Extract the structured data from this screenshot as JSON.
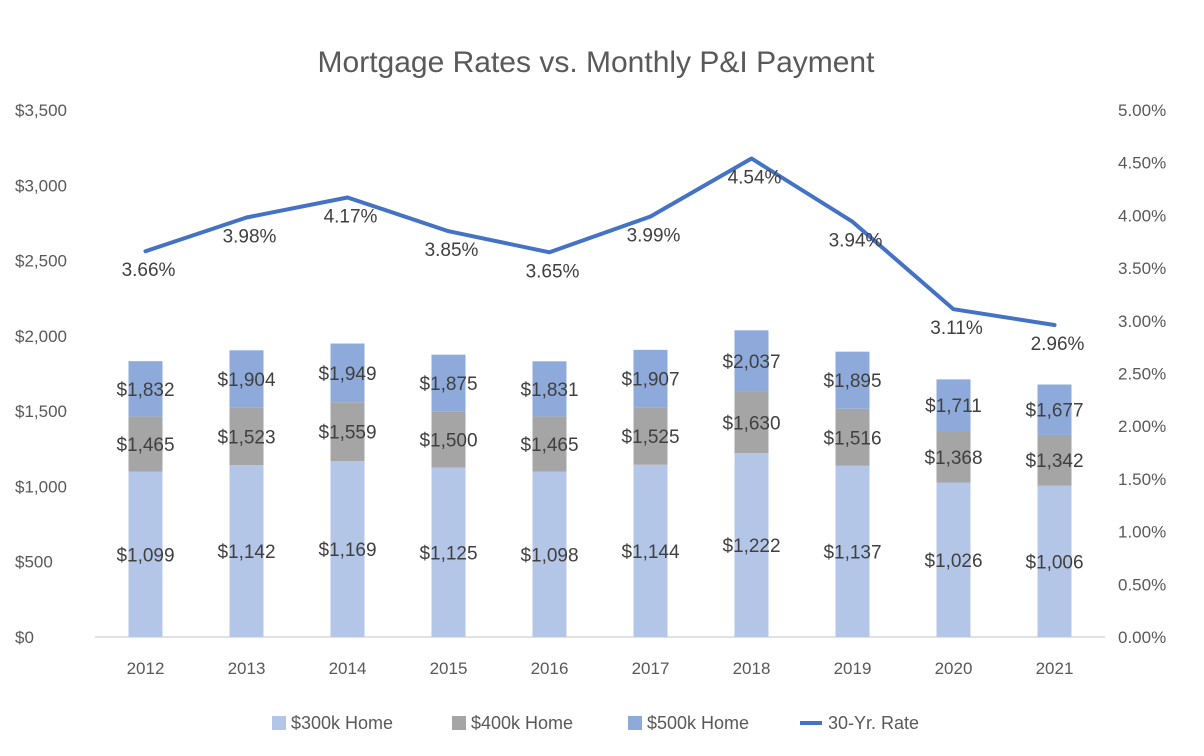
{
  "chart_data": {
    "type": "bar",
    "title": "Mortgage Rates vs. Monthly P&I Payment",
    "xlabel": "",
    "ylabel": "",
    "y2label": "",
    "categories": [
      "2012",
      "2013",
      "2014",
      "2015",
      "2016",
      "2017",
      "2018",
      "2019",
      "2020",
      "2021"
    ],
    "stacked": true,
    "series": [
      {
        "name": "$300k Home",
        "kind": "bar",
        "color": "#b4c6e7",
        "values": [
          1099,
          1142,
          1169,
          1125,
          1098,
          1144,
          1222,
          1137,
          1026,
          1006
        ],
        "labels": [
          "$1,099",
          "$1,142",
          "$1,169",
          "$1,125",
          "$1,098",
          "$1,144",
          "$1,222",
          "$1,137",
          "$1,026",
          "$1,006"
        ]
      },
      {
        "name": "$400k Home",
        "kind": "bar",
        "color": "#a5a5a5",
        "values": [
          1465,
          1523,
          1559,
          1500,
          1465,
          1525,
          1630,
          1516,
          1368,
          1342
        ],
        "labels": [
          "$1,465",
          "$1,523",
          "$1,559",
          "$1,500",
          "$1,465",
          "$1,525",
          "$1,630",
          "$1,516",
          "$1,368",
          "$1,342"
        ]
      },
      {
        "name": "$500k Home",
        "kind": "bar",
        "color": "#8eaadb",
        "values": [
          1832,
          1904,
          1949,
          1875,
          1831,
          1907,
          2037,
          1895,
          1711,
          1677
        ],
        "labels": [
          "$1,832",
          "$1,904",
          "$1,949",
          "$1,875",
          "$1,831",
          "$1,907",
          "$2,037",
          "$1,895",
          "$1,711",
          "$1,677"
        ]
      },
      {
        "name": "30-Yr. Rate",
        "kind": "line",
        "axis": "right",
        "color": "#4472c4",
        "values": [
          3.66,
          3.98,
          4.17,
          3.85,
          3.65,
          3.99,
          4.54,
          3.94,
          3.11,
          2.96
        ],
        "labels": [
          "3.66%",
          "3.98%",
          "4.17%",
          "3.85%",
          "3.65%",
          "3.99%",
          "4.54%",
          "3.94%",
          "3.11%",
          "2.96%"
        ]
      }
    ],
    "ylim": [
      0,
      3500
    ],
    "y_ticks": [
      "$0",
      "$500",
      "$1,000",
      "$1,500",
      "$2,000",
      "$2,500",
      "$3,000",
      "$3,500"
    ],
    "y2lim": [
      0,
      5
    ],
    "y2_ticks": [
      "0.00%",
      "0.50%",
      "1.00%",
      "1.50%",
      "2.00%",
      "2.50%",
      "3.00%",
      "3.50%",
      "4.00%",
      "4.50%",
      "5.00%"
    ],
    "grid": false,
    "legend": "bottom"
  }
}
